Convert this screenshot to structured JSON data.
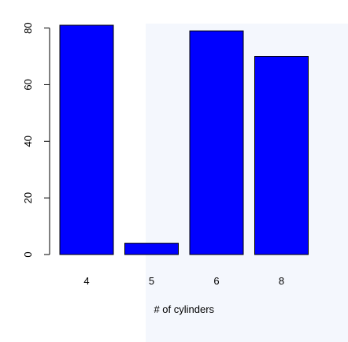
{
  "chart_data": {
    "type": "bar",
    "categories": [
      "4",
      "5",
      "6",
      "8"
    ],
    "values": [
      81,
      4,
      79,
      70
    ],
    "xlabel": "# of cylinders",
    "ylabel": "",
    "ylim": [
      0,
      81
    ],
    "yticks": [
      0,
      20,
      40,
      60,
      80
    ],
    "bar_color": "#0000ff",
    "bar_outline": "#000000",
    "grid": false,
    "legend": "none"
  }
}
